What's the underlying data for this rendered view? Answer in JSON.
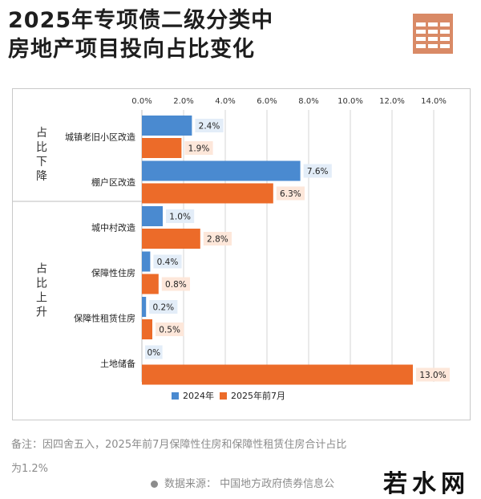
{
  "title": {
    "line1": "2025年专项债二级分类中",
    "line2": "房地产项目投向占比变化"
  },
  "icons": {
    "table": "table-icon"
  },
  "colors": {
    "series_2024": "#4a8ad0",
    "series_2025": "#ec6b29",
    "grid": "#d4d4d4",
    "label_bg_2024": "#e3edf8",
    "label_bg_2025": "#fde7da"
  },
  "chart_data": {
    "type": "bar",
    "orientation": "horizontal",
    "categories": [
      "城镇老旧小区改造",
      "棚户区改造",
      "城中村改造",
      "保障性住房",
      "保障性租赁住房",
      "土地储备"
    ],
    "groups": [
      {
        "label": "占比下降",
        "categories": [
          "城镇老旧小区改造",
          "棚户区改造"
        ]
      },
      {
        "label": "占比上升",
        "categories": [
          "城中村改造",
          "保障性住房",
          "保障性租赁住房",
          "土地储备"
        ]
      }
    ],
    "series": [
      {
        "name": "2024年",
        "values": [
          2.4,
          7.6,
          1.0,
          0.4,
          0.2,
          0
        ]
      },
      {
        "name": "2025年前7月",
        "values": [
          1.9,
          6.3,
          2.8,
          0.8,
          0.5,
          13.0
        ]
      }
    ],
    "data_labels": [
      [
        "2.4%",
        "7.6%",
        "1.0%",
        "0.4%",
        "0.2%",
        "0%"
      ],
      [
        "1.9%",
        "6.3%",
        "2.8%",
        "0.8%",
        "0.5%",
        "13.0%"
      ]
    ],
    "x_ticks": [
      "0.0%",
      "2.0%",
      "4.0%",
      "6.0%",
      "8.0%",
      "10.0%",
      "12.0%",
      "14.0%"
    ],
    "xlim": [
      0,
      14
    ],
    "x_axis_position": "top",
    "grid": true,
    "legend_position": "bottom"
  },
  "note": {
    "line1": "备注：因四舍五入，2025年前7月保障性住房和保障性租赁住房合计占比",
    "line2": "为1.2%"
  },
  "source": {
    "text": "数据来源：  中国地方政府债券信息公"
  },
  "logo": {
    "text": "若水网"
  }
}
